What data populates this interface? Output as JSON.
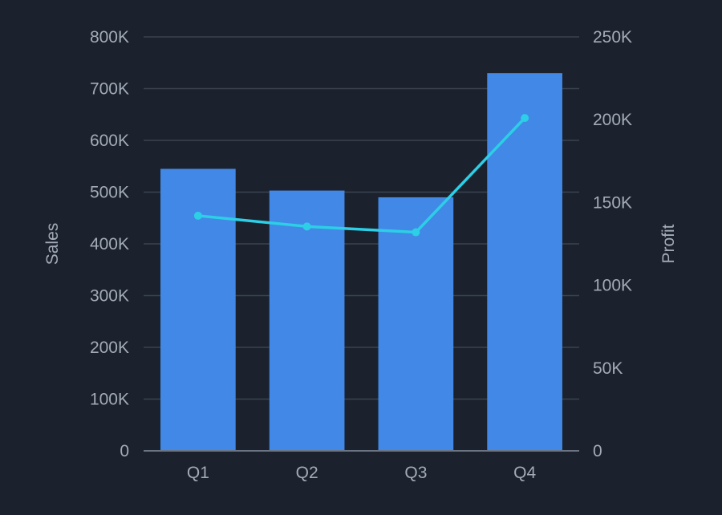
{
  "chart_data": {
    "type": "bar",
    "categories": [
      "Q1",
      "Q2",
      "Q3",
      "Q4"
    ],
    "series": [
      {
        "type": "bar",
        "axis": "left",
        "values": [
          545000,
          503000,
          490000,
          730000
        ]
      },
      {
        "type": "line",
        "axis": "right",
        "values": [
          142000,
          135500,
          132000,
          201000
        ]
      }
    ],
    "title": "",
    "xlabel": "",
    "ylabel": "Sales",
    "y2label": "Profit",
    "ylim": [
      0,
      800000
    ],
    "y2lim": [
      0,
      250000
    ],
    "yticks": [
      "0",
      "100K",
      "200K",
      "300K",
      "400K",
      "500K",
      "600K",
      "700K",
      "800K"
    ],
    "y2ticks": [
      "0",
      "50K",
      "100K",
      "150K",
      "200K",
      "250K"
    ],
    "grid": true,
    "legend": "none",
    "colors": {
      "background": "#1b222d",
      "bar": "#4288e6",
      "line": "#2ccfe6",
      "grid": "#3a4350",
      "axis": "#6b7482",
      "text": "#a3abb8"
    }
  }
}
